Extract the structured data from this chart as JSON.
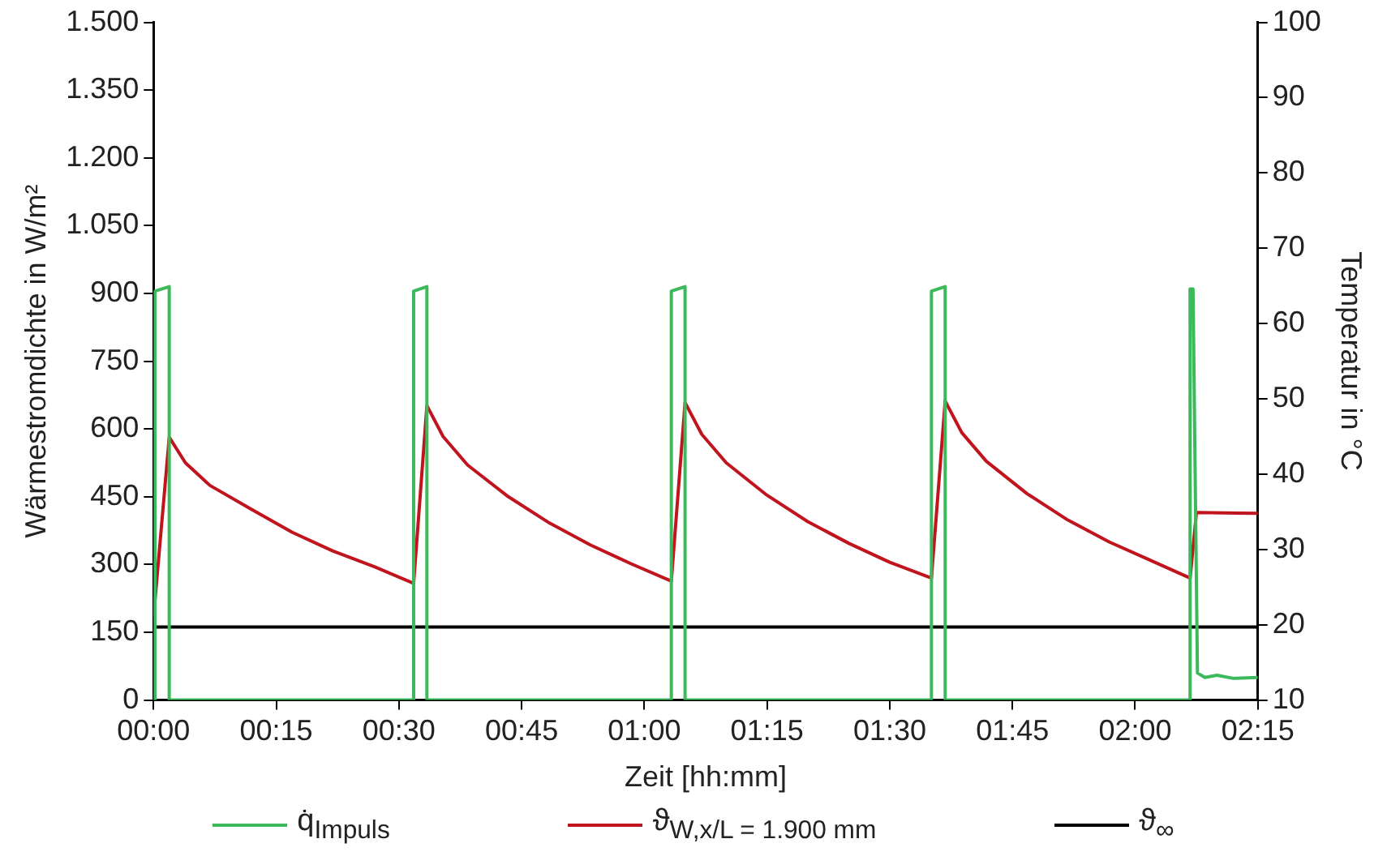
{
  "chart_data": {
    "type": "line",
    "xlabel": "Zeit [hh:mm]",
    "ylabel": "Wärmestromdichte in W/m²",
    "y2label": "Temperatur in °C",
    "xlim": [
      0,
      2.25
    ],
    "xticks": [
      {
        "value": 0,
        "label": "00:00"
      },
      {
        "value": 0.25,
        "label": "00:15"
      },
      {
        "value": 0.5,
        "label": "00:30"
      },
      {
        "value": 0.75,
        "label": "00:45"
      },
      {
        "value": 1,
        "label": "01:00"
      },
      {
        "value": 1.25,
        "label": "01:15"
      },
      {
        "value": 1.5,
        "label": "01:30"
      },
      {
        "value": 1.75,
        "label": "01:45"
      },
      {
        "value": 2,
        "label": "02:00"
      },
      {
        "value": 2.25,
        "label": "02:15"
      }
    ],
    "ylim": [
      0,
      1500
    ],
    "yticks": [
      0,
      150,
      300,
      450,
      600,
      750,
      900,
      {
        "value": 1050,
        "label": "1.050"
      },
      {
        "value": 1200,
        "label": "1.200"
      },
      {
        "value": 1350,
        "label": "1.350"
      },
      {
        "value": 1500,
        "label": "1.500"
      }
    ],
    "y2lim": [
      10,
      100
    ],
    "y2ticks": [
      10,
      20,
      30,
      40,
      50,
      60,
      70,
      80,
      90,
      100
    ],
    "grid": false,
    "legend": "bottom",
    "marker": "none",
    "line_style": "solid",
    "series": [
      {
        "name": "q̇$_{Impuls}$",
        "color": "#3cb95a",
        "x": [
          0,
          0.003,
          0.003,
          0.032,
          0.032,
          0.53,
          0.53,
          0.557,
          0.557,
          1.055,
          1.055,
          1.083,
          1.083,
          1.585,
          1.585,
          1.613,
          1.613,
          2.112,
          2.112,
          2.118,
          2.127,
          2.142,
          2.167,
          2.2,
          2.25
        ],
        "values": [
          0,
          0,
          905,
          915,
          0,
          0,
          905,
          915,
          0,
          0,
          905,
          915,
          0,
          0,
          905,
          915,
          0,
          0,
          910,
          910,
          60,
          50,
          55,
          48,
          50
        ]
      },
      {
        "name": "ϑ$_{W,x/L = 1.900 mm}$",
        "color": "#c0141e",
        "axis": "y2",
        "x": [
          0,
          0.032,
          0.065,
          0.115,
          0.2,
          0.282,
          0.365,
          0.45,
          0.53,
          0.557,
          0.59,
          0.64,
          0.723,
          0.807,
          0.89,
          0.973,
          1.055,
          1.083,
          1.117,
          1.167,
          1.25,
          1.333,
          1.417,
          1.5,
          1.585,
          1.613,
          1.647,
          1.697,
          1.78,
          1.863,
          1.947,
          2.03,
          2.112,
          2.125,
          2.25
        ],
        "values": [
          21,
          44.9,
          41.5,
          38.5,
          35.3,
          32.3,
          29.8,
          27.7,
          25.5,
          49.1,
          45,
          41.2,
          37,
          33.5,
          30.6,
          28.1,
          25.8,
          49.5,
          45.3,
          41.5,
          37.2,
          33.7,
          30.8,
          28.3,
          26.2,
          49.7,
          45.5,
          41.7,
          37.4,
          33.9,
          31,
          28.6,
          26.2,
          34.9,
          34.8
        ]
      },
      {
        "name": "ϑ$_{∞}$",
        "color": "#000000",
        "axis": "y2",
        "x": [
          0,
          2.25
        ],
        "values": [
          19.7,
          19.7
        ]
      }
    ]
  }
}
